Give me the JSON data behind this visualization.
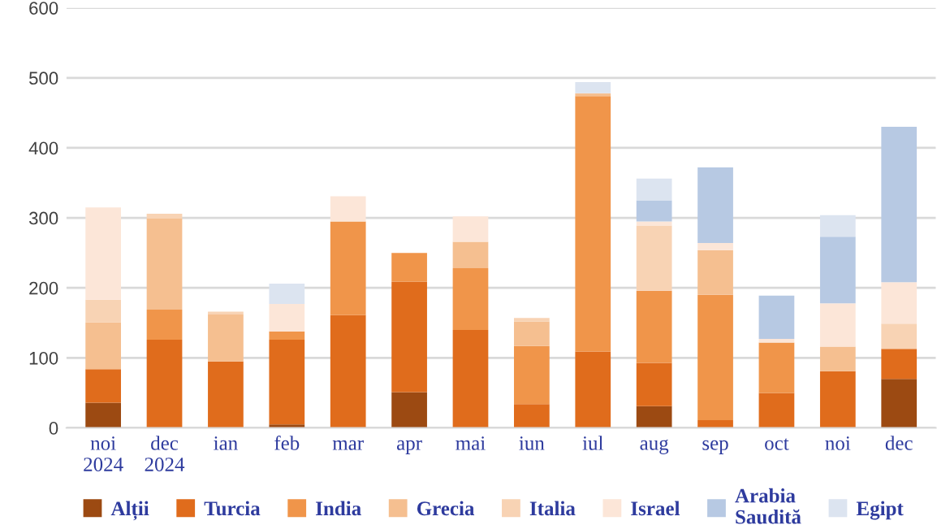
{
  "chart_data": {
    "type": "bar",
    "stacked": true,
    "categories": [
      "noi\n2024",
      "dec\n2024",
      "ian",
      "feb",
      "mar",
      "apr",
      "mai",
      "iun",
      "iul",
      "aug",
      "sep",
      "oct",
      "noi",
      "dec"
    ],
    "series": [
      {
        "name": "Alții",
        "color": "#9c4a12",
        "values": [
          36,
          null,
          null,
          5,
          null,
          51,
          null,
          null,
          null,
          31,
          null,
          null,
          null,
          70
        ]
      },
      {
        "name": "Turcia",
        "color": "#e06c1c",
        "values": [
          48,
          126,
          95,
          121,
          161,
          158,
          140,
          34,
          109,
          62,
          11,
          50,
          81,
          43
        ]
      },
      {
        "name": "India",
        "color": "#f0954a",
        "values": [
          null,
          43,
          null,
          12,
          134,
          41,
          88,
          83,
          365,
          103,
          179,
          72,
          null,
          null
        ]
      },
      {
        "name": "Grecia",
        "color": "#f5bf90",
        "values": [
          67,
          130,
          67,
          null,
          null,
          null,
          38,
          35,
          4,
          null,
          64,
          null,
          35,
          null
        ]
      },
      {
        "name": "Italia",
        "color": "#f8d3b4",
        "values": [
          32,
          7,
          4,
          null,
          null,
          null,
          null,
          5,
          null,
          93,
          null,
          null,
          null,
          36
        ]
      },
      {
        "name": "Israel",
        "color": "#fce6d8",
        "values": [
          132,
          null,
          null,
          39,
          36,
          null,
          36,
          null,
          null,
          6,
          10,
          5,
          62,
          59
        ]
      },
      {
        "name": "Arabia\nSaudită",
        "color": "#b7c9e3",
        "values": [
          null,
          null,
          null,
          null,
          null,
          null,
          null,
          null,
          null,
          30,
          108,
          62,
          95,
          222
        ]
      },
      {
        "name": "Egipt",
        "color": "#dce4f0",
        "values": [
          null,
          null,
          null,
          29,
          null,
          null,
          null,
          null,
          16,
          31,
          null,
          null,
          31,
          null
        ]
      }
    ],
    "ylim": [
      0,
      600
    ],
    "yticks": [
      0,
      100,
      200,
      300,
      400,
      500,
      600
    ],
    "grid": "y",
    "legend": "bottom"
  }
}
